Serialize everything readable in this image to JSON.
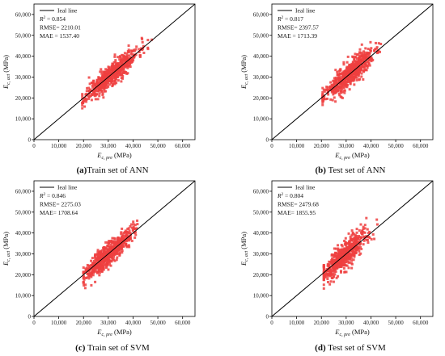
{
  "chart_data": [
    {
      "type": "scatter",
      "caption_label": "(a)",
      "caption_text": "Train set of ANN",
      "xlabel_main": "E",
      "xlabel_sub": "c, pre",
      "xlabel_unit": " (MPa)",
      "ylabel_main": "E",
      "ylabel_sub": "c, act",
      "ylabel_unit": " (MPa)",
      "xlim": [
        0,
        65000
      ],
      "ylim": [
        0,
        65000
      ],
      "xticks": [
        0,
        10000,
        20000,
        30000,
        40000,
        50000,
        60000
      ],
      "xtick_labels": [
        "0",
        "10,000",
        "20,000",
        "30,000",
        "40,000",
        "50,000",
        "60,000"
      ],
      "yticks": [
        0,
        10000,
        20000,
        30000,
        40000,
        50000,
        60000
      ],
      "ytick_labels": [
        "0",
        "10,000",
        "20,000",
        "30,000",
        "40,000",
        "50,000",
        "60,000"
      ],
      "legend_line": "Ieal line",
      "r2_label": "R",
      "r2_value": " = 0.854",
      "rmse": "RMSE= 2210.01",
      "mae": "MAE  = 1537.40",
      "point_color": "#ee4040",
      "line_color": "#000000",
      "cloud": {
        "count": 620,
        "x_center": 31500,
        "x_spread": 5200,
        "x_min": 19500,
        "x_max": 50500,
        "slope": 1.0,
        "noise": 2600,
        "seed": 11
      }
    },
    {
      "type": "scatter",
      "caption_label": "(b)",
      "caption_text": " Test set of ANN",
      "xlabel_main": "E",
      "xlabel_sub": "c, pre",
      "xlabel_unit": " (MPa)",
      "ylabel_main": "E",
      "ylabel_sub": "c, act",
      "ylabel_unit": " (MPa)",
      "xlim": [
        0,
        65000
      ],
      "ylim": [
        0,
        65000
      ],
      "xticks": [
        0,
        10000,
        20000,
        30000,
        40000,
        50000,
        60000
      ],
      "xtick_labels": [
        "0",
        "10,000",
        "20,000",
        "30,000",
        "40,000",
        "50,000",
        "60,000"
      ],
      "yticks": [
        0,
        10000,
        20000,
        30000,
        40000,
        50000,
        60000
      ],
      "ytick_labels": [
        "0",
        "10,000",
        "20,000",
        "30,000",
        "40,000",
        "50,000",
        "60,000"
      ],
      "legend_line": "Ieal line",
      "r2_label": "R",
      "r2_value": " = 0.817",
      "rmse": "RMSE= 2397.57",
      "mae": "MAE  = 1713.39",
      "point_color": "#ee4040",
      "line_color": "#000000",
      "cloud": {
        "count": 620,
        "x_center": 31000,
        "x_spread": 5000,
        "x_min": 20500,
        "x_max": 50000,
        "slope": 1.0,
        "noise": 2900,
        "seed": 23
      }
    },
    {
      "type": "scatter",
      "caption_label": "(c)",
      "caption_text": " Train set of SVM",
      "xlabel_main": "E",
      "xlabel_sub": "c, pre",
      "xlabel_unit": " (MPa)",
      "ylabel_main": "E",
      "ylabel_sub": "c, act",
      "ylabel_unit": " (MPa)",
      "xlim": [
        0,
        65000
      ],
      "ylim": [
        0,
        65000
      ],
      "xticks": [
        0,
        10000,
        20000,
        30000,
        40000,
        50000,
        60000
      ],
      "xtick_labels": [
        "0",
        "10,000",
        "20,000",
        "30,000",
        "40,000",
        "50,000",
        "60,000"
      ],
      "yticks": [
        0,
        10000,
        20000,
        30000,
        40000,
        50000,
        60000
      ],
      "ytick_labels": [
        "0",
        "10,000",
        "20,000",
        "30,000",
        "40,000",
        "50,000",
        "60,000"
      ],
      "legend_line": "Ieal line",
      "r2_label": "R",
      "r2_value": " = 0.846",
      "rmse": "RMSE= 2275.03",
      "mae": "MAE= 1708.64",
      "point_color": "#ee4040",
      "line_color": "#000000",
      "cloud": {
        "count": 620,
        "x_center": 30000,
        "x_spread": 4800,
        "x_min": 20000,
        "x_max": 49500,
        "slope": 1.05,
        "noise": 2700,
        "seed": 37
      }
    },
    {
      "type": "scatter",
      "caption_label": "(d)",
      "caption_text": " Test set of SVM",
      "xlabel_main": "E",
      "xlabel_sub": "c, pre",
      "xlabel_unit": " (MPa)",
      "ylabel_main": "E",
      "ylabel_sub": "c, act",
      "ylabel_unit": " (MPa)",
      "xlim": [
        0,
        65000
      ],
      "ylim": [
        0,
        65000
      ],
      "xticks": [
        0,
        10000,
        20000,
        30000,
        40000,
        50000,
        60000
      ],
      "xtick_labels": [
        "0",
        "10,000",
        "20,000",
        "30,000",
        "40,000",
        "50,000",
        "60,000"
      ],
      "yticks": [
        0,
        10000,
        20000,
        30000,
        40000,
        50000,
        60000
      ],
      "ytick_labels": [
        "0",
        "10,000",
        "20,000",
        "30,000",
        "40,000",
        "50,000",
        "60,000"
      ],
      "legend_line": "Ieal line",
      "r2_label": "R",
      "r2_value": " = 0.804",
      "rmse": "RMSE= 2479.68",
      "mae": "MAE= 1855.95",
      "point_color": "#ee4040",
      "line_color": "#000000",
      "cloud": {
        "count": 620,
        "x_center": 29500,
        "x_spread": 4700,
        "x_min": 21000,
        "x_max": 49000,
        "slope": 1.1,
        "noise": 3100,
        "seed": 53
      }
    }
  ]
}
